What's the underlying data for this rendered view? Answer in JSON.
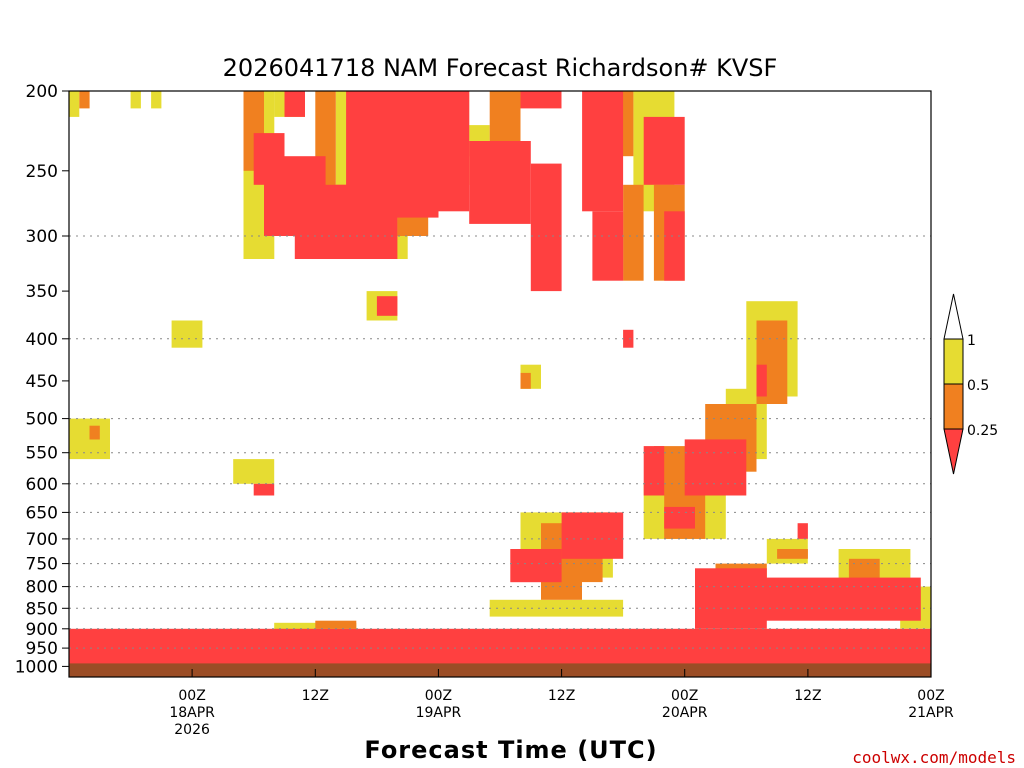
{
  "chart_data": {
    "type": "heatmap",
    "title": "2026041718 NAM Forecast Richardson# KVSF",
    "xlabel": "Forecast Time (UTC)",
    "ylabel": "",
    "yaxis": {
      "units": "hPa",
      "scale": "log",
      "reversed": true,
      "ylim": [
        1030,
        200
      ],
      "ticks": [
        200,
        250,
        300,
        350,
        400,
        450,
        500,
        550,
        600,
        650,
        700,
        750,
        800,
        850,
        900,
        950,
        1000
      ],
      "tick_labels": [
        "200",
        "250",
        "300",
        "350",
        "400",
        "450",
        "500",
        "550",
        "600",
        "650",
        "700",
        "750",
        "800",
        "850",
        "900",
        "950",
        "1000"
      ],
      "gridlines": [
        300,
        400,
        500,
        550,
        600,
        650,
        700,
        750,
        800,
        850,
        900,
        950
      ]
    },
    "xaxis": {
      "units": "forecast hour",
      "xlim": [
        -6,
        78
      ],
      "ticks": [
        {
          "hour": 6,
          "lines": [
            "00Z",
            "18APR",
            "2026"
          ]
        },
        {
          "hour": 18,
          "lines": [
            "12Z"
          ]
        },
        {
          "hour": 30,
          "lines": [
            "00Z",
            "19APR"
          ]
        },
        {
          "hour": 42,
          "lines": [
            "12Z"
          ]
        },
        {
          "hour": 54,
          "lines": [
            "00Z",
            "20APR"
          ]
        },
        {
          "hour": 66,
          "lines": [
            "12Z"
          ]
        },
        {
          "hour": 78,
          "lines": [
            "00Z",
            "21APR"
          ]
        }
      ]
    },
    "legend": {
      "placement": "right",
      "bins": [
        {
          "range": "< 0.25",
          "color": "#ff4040"
        },
        {
          "range": "0.25 - 0.5",
          "color": "#f08020"
        },
        {
          "range": "0.5 - 1",
          "color": "#e6dc32"
        },
        {
          "range": "> 1",
          "color": "#ffffff"
        }
      ],
      "labels": [
        "1",
        "0.5",
        "0.25"
      ]
    },
    "ground_fill": {
      "from_hpa": 1000,
      "color": "#9b4d26"
    },
    "grid": true,
    "regions": [
      {
        "bin": "yellow",
        "hours": [
          -6,
          -5
        ],
        "hpa": [
          200,
          215
        ]
      },
      {
        "bin": "orange",
        "hours": [
          -5,
          -4
        ],
        "hpa": [
          200,
          210
        ]
      },
      {
        "bin": "yellow",
        "hours": [
          0,
          1
        ],
        "hpa": [
          200,
          210
        ]
      },
      {
        "bin": "yellow",
        "hours": [
          2,
          3
        ],
        "hpa": [
          200,
          210
        ]
      },
      {
        "bin": "yellow",
        "hours": [
          11,
          14
        ],
        "hpa": [
          200,
          320
        ]
      },
      {
        "bin": "orange",
        "hours": [
          11,
          13
        ],
        "hpa": [
          200,
          250
        ]
      },
      {
        "bin": "red",
        "hours": [
          12,
          15
        ],
        "hpa": [
          225,
          260
        ]
      },
      {
        "bin": "yellow",
        "hours": [
          14,
          17
        ],
        "hpa": [
          200,
          215
        ]
      },
      {
        "bin": "red",
        "hours": [
          15,
          17
        ],
        "hpa": [
          200,
          215
        ]
      },
      {
        "bin": "red",
        "hours": [
          13,
          19
        ],
        "hpa": [
          240,
          300
        ]
      },
      {
        "bin": "orange",
        "hours": [
          18,
          20
        ],
        "hpa": [
          200,
          270
        ]
      },
      {
        "bin": "red",
        "hours": [
          16,
          21
        ],
        "hpa": [
          260,
          320
        ]
      },
      {
        "bin": "yellow",
        "hours": [
          20,
          24
        ],
        "hpa": [
          200,
          320
        ]
      },
      {
        "bin": "red",
        "hours": [
          21,
          30
        ],
        "hpa": [
          200,
          285
        ]
      },
      {
        "bin": "red",
        "hours": [
          20,
          26
        ],
        "hpa": [
          260,
          320
        ]
      },
      {
        "bin": "orange",
        "hours": [
          26,
          29
        ],
        "hpa": [
          200,
          300
        ]
      },
      {
        "bin": "red",
        "hours": [
          27,
          30
        ],
        "hpa": [
          230,
          275
        ]
      },
      {
        "bin": "yellow",
        "hours": [
          24,
          27
        ],
        "hpa": [
          285,
          320
        ]
      },
      {
        "bin": "red",
        "hours": [
          30,
          33
        ],
        "hpa": [
          200,
          280
        ]
      },
      {
        "bin": "orange",
        "hours": [
          31,
          33
        ],
        "hpa": [
          200,
          240
        ]
      },
      {
        "bin": "yellow",
        "hours": [
          33,
          35
        ],
        "hpa": [
          220,
          260
        ]
      },
      {
        "bin": "red",
        "hours": [
          33,
          39
        ],
        "hpa": [
          230,
          290
        ]
      },
      {
        "bin": "orange",
        "hours": [
          35,
          38
        ],
        "hpa": [
          200,
          240
        ]
      },
      {
        "bin": "red",
        "hours": [
          38,
          42
        ],
        "hpa": [
          200,
          210
        ]
      },
      {
        "bin": "red",
        "hours": [
          39,
          42
        ],
        "hpa": [
          245,
          350
        ]
      },
      {
        "bin": "orange",
        "hours": [
          40,
          42
        ],
        "hpa": [
          260,
          330
        ]
      },
      {
        "bin": "red",
        "hours": [
          44,
          48
        ],
        "hpa": [
          200,
          280
        ]
      },
      {
        "bin": "orange",
        "hours": [
          46,
          49
        ],
        "hpa": [
          200,
          240
        ]
      },
      {
        "bin": "red",
        "hours": [
          45,
          48
        ],
        "hpa": [
          280,
          340
        ]
      },
      {
        "bin": "orange",
        "hours": [
          48,
          50
        ],
        "hpa": [
          260,
          340
        ]
      },
      {
        "bin": "yellow",
        "hours": [
          49,
          53
        ],
        "hpa": [
          200,
          280
        ]
      },
      {
        "bin": "red",
        "hours": [
          50,
          54
        ],
        "hpa": [
          215,
          260
        ]
      },
      {
        "bin": "orange",
        "hours": [
          51,
          54
        ],
        "hpa": [
          260,
          340
        ]
      },
      {
        "bin": "red",
        "hours": [
          52,
          54
        ],
        "hpa": [
          280,
          340
        ]
      },
      {
        "bin": "yellow",
        "hours": [
          10,
          14
        ],
        "hpa": [
          560,
          600
        ]
      },
      {
        "bin": "red",
        "hours": [
          12,
          14
        ],
        "hpa": [
          600,
          620
        ]
      },
      {
        "bin": "yellow",
        "hours": [
          4,
          7
        ],
        "hpa": [
          380,
          410
        ]
      },
      {
        "bin": "yellow",
        "hours": [
          -6,
          -2
        ],
        "hpa": [
          500,
          560
        ]
      },
      {
        "bin": "orange",
        "hours": [
          -4,
          -3
        ],
        "hpa": [
          510,
          530
        ]
      },
      {
        "bin": "yellow",
        "hours": [
          23,
          26
        ],
        "hpa": [
          350,
          380
        ]
      },
      {
        "bin": "red",
        "hours": [
          24,
          26
        ],
        "hpa": [
          355,
          375
        ]
      },
      {
        "bin": "yellow",
        "hours": [
          38,
          40
        ],
        "hpa": [
          430,
          460
        ]
      },
      {
        "bin": "orange",
        "hours": [
          38,
          39
        ],
        "hpa": [
          440,
          460
        ]
      },
      {
        "bin": "red",
        "hours": [
          48,
          49
        ],
        "hpa": [
          390,
          410
        ]
      },
      {
        "bin": "yellow",
        "hours": [
          60,
          65
        ],
        "hpa": [
          360,
          470
        ]
      },
      {
        "bin": "orange",
        "hours": [
          61,
          64
        ],
        "hpa": [
          380,
          480
        ]
      },
      {
        "bin": "red",
        "hours": [
          61,
          62
        ],
        "hpa": [
          430,
          470
        ]
      },
      {
        "bin": "yellow",
        "hours": [
          58,
          62
        ],
        "hpa": [
          460,
          560
        ]
      },
      {
        "bin": "orange",
        "hours": [
          56,
          61
        ],
        "hpa": [
          480,
          580
        ]
      },
      {
        "bin": "red",
        "hours": [
          54,
          60
        ],
        "hpa": [
          530,
          620
        ]
      },
      {
        "bin": "orange",
        "hours": [
          51,
          56
        ],
        "hpa": [
          540,
          620
        ]
      },
      {
        "bin": "red",
        "hours": [
          50,
          52
        ],
        "hpa": [
          540,
          620
        ]
      },
      {
        "bin": "yellow",
        "hours": [
          50,
          58
        ],
        "hpa": [
          600,
          700
        ]
      },
      {
        "bin": "orange",
        "hours": [
          52,
          56
        ],
        "hpa": [
          620,
          700
        ]
      },
      {
        "bin": "red",
        "hours": [
          52,
          55
        ],
        "hpa": [
          640,
          680
        ]
      },
      {
        "bin": "yellow",
        "hours": [
          38,
          47
        ],
        "hpa": [
          650,
          780
        ]
      },
      {
        "bin": "orange",
        "hours": [
          40,
          46
        ],
        "hpa": [
          670,
          790
        ]
      },
      {
        "bin": "red",
        "hours": [
          42,
          48
        ],
        "hpa": [
          650,
          740
        ]
      },
      {
        "bin": "red",
        "hours": [
          37,
          42
        ],
        "hpa": [
          720,
          790
        ]
      },
      {
        "bin": "orange",
        "hours": [
          40,
          44
        ],
        "hpa": [
          760,
          830
        ]
      },
      {
        "bin": "yellow",
        "hours": [
          35,
          48
        ],
        "hpa": [
          830,
          870
        ]
      },
      {
        "bin": "yellow",
        "hours": [
          62,
          66
        ],
        "hpa": [
          700,
          750
        ]
      },
      {
        "bin": "orange",
        "hours": [
          63,
          66
        ],
        "hpa": [
          720,
          740
        ]
      },
      {
        "bin": "red",
        "hours": [
          65,
          66
        ],
        "hpa": [
          670,
          700
        ]
      },
      {
        "bin": "yellow",
        "hours": [
          69,
          76
        ],
        "hpa": [
          720,
          800
        ]
      },
      {
        "bin": "orange",
        "hours": [
          70,
          73
        ],
        "hpa": [
          740,
          790
        ]
      },
      {
        "bin": "orange",
        "hours": [
          57,
          62
        ],
        "hpa": [
          750,
          800
        ]
      },
      {
        "bin": "red",
        "hours": [
          55,
          62
        ],
        "hpa": [
          760,
          900
        ]
      },
      {
        "bin": "red",
        "hours": [
          60,
          77
        ],
        "hpa": [
          780,
          880
        ]
      },
      {
        "bin": "yellow",
        "hours": [
          75,
          79
        ],
        "hpa": [
          800,
          900
        ]
      },
      {
        "bin": "red",
        "hours": [
          -6,
          78
        ],
        "hpa": [
          900,
          1000
        ]
      },
      {
        "bin": "yellow",
        "hours": [
          14,
          22
        ],
        "hpa": [
          885,
          905
        ]
      },
      {
        "bin": "orange",
        "hours": [
          18,
          22
        ],
        "hpa": [
          880,
          900
        ]
      }
    ]
  },
  "legend_labels": {
    "one": "1",
    "half": "0.5",
    "quarter": "0.25"
  },
  "credit": "coolwx.com/models"
}
